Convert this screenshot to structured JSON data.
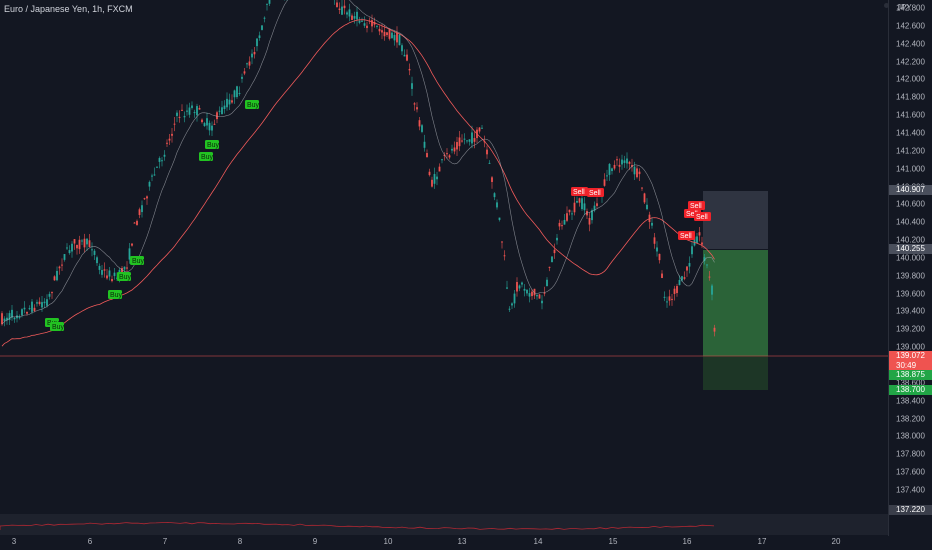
{
  "legend": {
    "title": "Euro / Japanese Yen, 1h, FXCM"
  },
  "price_axis": {
    "currency": "JPY",
    "ticks": [
      "142.800",
      "142.600",
      "142.400",
      "142.200",
      "142.000",
      "141.800",
      "141.600",
      "141.400",
      "141.200",
      "141.000",
      "140.800",
      "140.600",
      "140.400",
      "140.200",
      "140.000",
      "139.800",
      "139.600",
      "139.400",
      "139.200",
      "139.000",
      "138.800",
      "138.600",
      "138.400",
      "138.200",
      "138.000",
      "137.800",
      "137.600",
      "137.400"
    ],
    "tags": {
      "target_top": "140.907",
      "entry": "140.255",
      "current": "139.072",
      "countdown": "30:49",
      "stop_1": "138.875",
      "stop_2": "138.700",
      "indicator": "137.220"
    }
  },
  "time_axis": {
    "labels": [
      "3",
      "6",
      "7",
      "8",
      "9",
      "10",
      "13",
      "14",
      "15",
      "16",
      "17",
      "20"
    ]
  },
  "signals": {
    "buy": "Buy",
    "sell": "Sell"
  },
  "colors": {
    "background": "#131722",
    "bull": "#26a69a",
    "bear": "#ef5350",
    "buy_label": "#22c322",
    "sell_label": "#f0232a",
    "ma_slow": "#f05a5a",
    "ma_fast": "#b0b3bb",
    "position_green": "#2f6b3b",
    "position_gray": "#373c4a",
    "indicator_line": "#b22833"
  }
}
